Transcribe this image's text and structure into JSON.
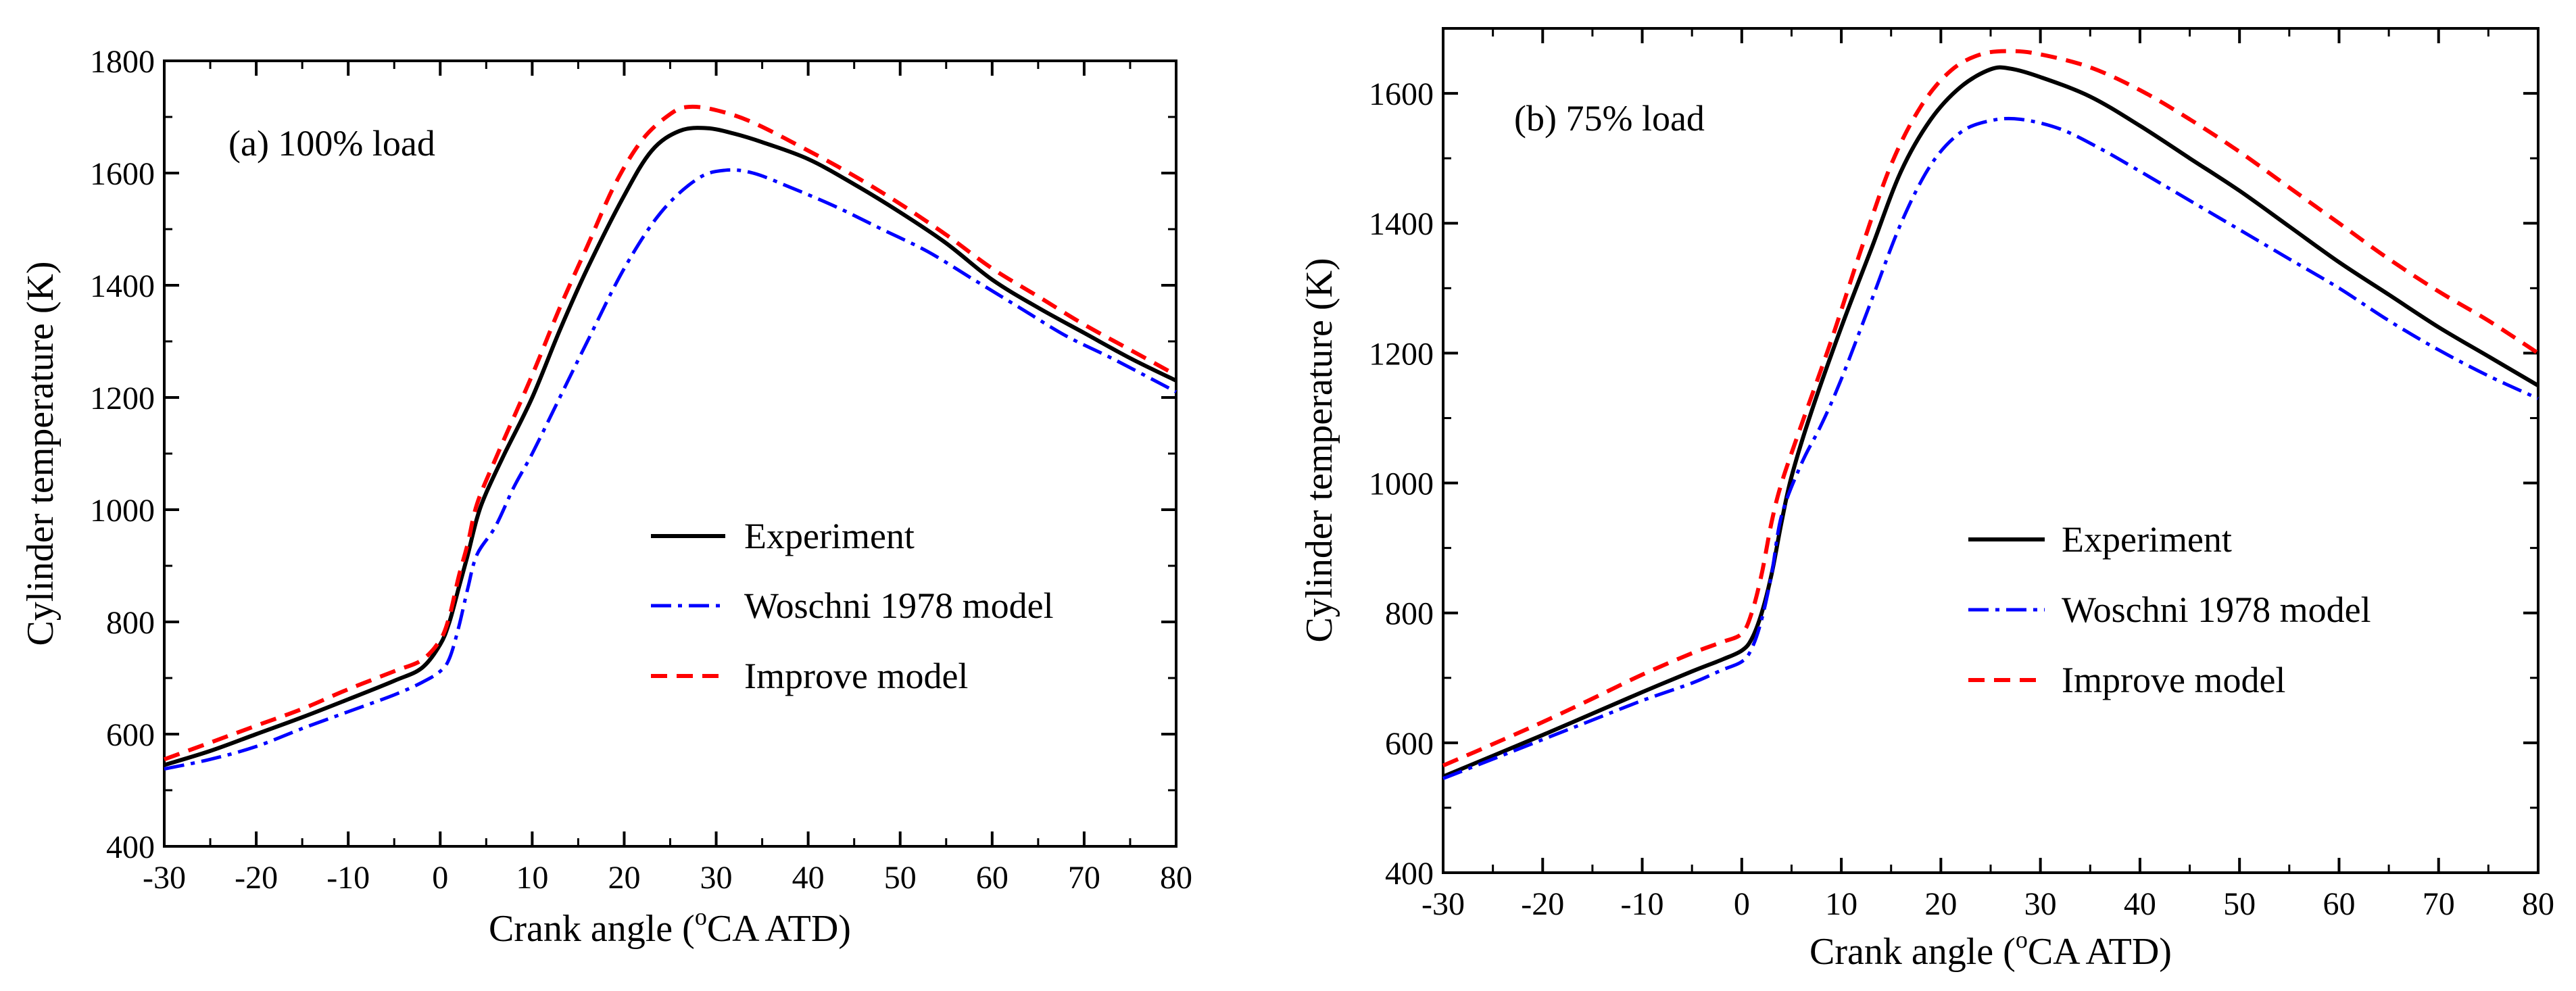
{
  "chart_data": [
    {
      "type": "line",
      "panel_label": "(a) 100% load",
      "xlabel_pre": "Crank angle (",
      "xlabel_sup": "o",
      "xlabel_post": "CA ATD)",
      "ylabel": "Cylinder temperature (K)",
      "xlim": [
        -30,
        80
      ],
      "ylim": [
        400,
        1800
      ],
      "xticks": [
        -30,
        -20,
        -10,
        0,
        10,
        20,
        30,
        40,
        50,
        60,
        70,
        80
      ],
      "yticks": [
        400,
        600,
        800,
        1000,
        1200,
        1400,
        1600,
        1800
      ],
      "legend_position": "center-right",
      "series": [
        {
          "name": "Experiment",
          "color": "#000000",
          "dash": "solid",
          "points": [
            [
              -30,
              545
            ],
            [
              -25,
              570
            ],
            [
              -20,
              600
            ],
            [
              -15,
              630
            ],
            [
              -10,
              662
            ],
            [
              -5,
              695
            ],
            [
              -2,
              718
            ],
            [
              0,
              760
            ],
            [
              1,
              800
            ],
            [
              2,
              860
            ],
            [
              3,
              920
            ],
            [
              4,
              985
            ],
            [
              5,
              1030
            ],
            [
              7,
              1100
            ],
            [
              10,
              1200
            ],
            [
              13,
              1320
            ],
            [
              16,
              1430
            ],
            [
              20,
              1560
            ],
            [
              23,
              1640
            ],
            [
              26,
              1675
            ],
            [
              29,
              1680
            ],
            [
              32,
              1670
            ],
            [
              35,
              1655
            ],
            [
              40,
              1625
            ],
            [
              45,
              1580
            ],
            [
              50,
              1530
            ],
            [
              55,
              1475
            ],
            [
              60,
              1410
            ],
            [
              65,
              1360
            ],
            [
              70,
              1315
            ],
            [
              75,
              1270
            ],
            [
              80,
              1230
            ]
          ]
        },
        {
          "name": "Woschni 1978 model",
          "color": "#0000ff",
          "dash": "dashdot",
          "points": [
            [
              -30,
              538
            ],
            [
              -25,
              555
            ],
            [
              -20,
              578
            ],
            [
              -15,
              610
            ],
            [
              -10,
              640
            ],
            [
              -5,
              670
            ],
            [
              -2,
              692
            ],
            [
              0,
              712
            ],
            [
              1,
              735
            ],
            [
              2,
              790
            ],
            [
              3,
              860
            ],
            [
              4,
              920
            ],
            [
              6,
              970
            ],
            [
              8,
              1040
            ],
            [
              10,
              1100
            ],
            [
              13,
              1200
            ],
            [
              16,
              1300
            ],
            [
              20,
              1430
            ],
            [
              24,
              1530
            ],
            [
              28,
              1590
            ],
            [
              31,
              1605
            ],
            [
              34,
              1600
            ],
            [
              38,
              1575
            ],
            [
              43,
              1540
            ],
            [
              48,
              1500
            ],
            [
              53,
              1460
            ],
            [
              58,
              1410
            ],
            [
              63,
              1360
            ],
            [
              68,
              1310
            ],
            [
              73,
              1270
            ],
            [
              80,
              1210
            ]
          ]
        },
        {
          "name": "Improve model",
          "color": "#ff0000",
          "dash": "dashed",
          "points": [
            [
              -30,
              555
            ],
            [
              -25,
              585
            ],
            [
              -20,
              615
            ],
            [
              -15,
              645
            ],
            [
              -10,
              680
            ],
            [
              -5,
              712
            ],
            [
              -2,
              732
            ],
            [
              0,
              768
            ],
            [
              1,
              810
            ],
            [
              2,
              880
            ],
            [
              3,
              940
            ],
            [
              4,
              1010
            ],
            [
              6,
              1090
            ],
            [
              10,
              1240
            ],
            [
              13,
              1360
            ],
            [
              16,
              1470
            ],
            [
              19,
              1580
            ],
            [
              22,
              1660
            ],
            [
              25,
              1705
            ],
            [
              27,
              1718
            ],
            [
              30,
              1712
            ],
            [
              34,
              1690
            ],
            [
              40,
              1640
            ],
            [
              45,
              1595
            ],
            [
              50,
              1545
            ],
            [
              55,
              1490
            ],
            [
              60,
              1430
            ],
            [
              65,
              1380
            ],
            [
              70,
              1330
            ],
            [
              75,
              1285
            ],
            [
              80,
              1240
            ]
          ]
        }
      ]
    },
    {
      "type": "line",
      "panel_label": "(b) 75% load",
      "xlabel_pre": "Crank angle (",
      "xlabel_sup": "o",
      "xlabel_post": "CA ATD)",
      "ylabel": "Cylinder temperature (K)",
      "xlim": [
        -30,
        80
      ],
      "ylim": [
        400,
        1700
      ],
      "xticks": [
        -30,
        -20,
        -10,
        0,
        10,
        20,
        30,
        40,
        50,
        60,
        70,
        80
      ],
      "yticks": [
        400,
        600,
        800,
        1000,
        1200,
        1400,
        1600
      ],
      "legend_position": "center-right",
      "series": [
        {
          "name": "Experiment",
          "color": "#000000",
          "dash": "solid",
          "points": [
            [
              -30,
              548
            ],
            [
              -25,
              580
            ],
            [
              -20,
              612
            ],
            [
              -15,
              645
            ],
            [
              -10,
              678
            ],
            [
              -5,
              710
            ],
            [
              -2,
              728
            ],
            [
              0,
              742
            ],
            [
              1,
              760
            ],
            [
              2,
              800
            ],
            [
              3,
              860
            ],
            [
              4,
              940
            ],
            [
              5,
              1010
            ],
            [
              7,
              1110
            ],
            [
              10,
              1240
            ],
            [
              13,
              1360
            ],
            [
              16,
              1480
            ],
            [
              19,
              1560
            ],
            [
              22,
              1610
            ],
            [
              25,
              1637
            ],
            [
              27,
              1638
            ],
            [
              30,
              1625
            ],
            [
              35,
              1595
            ],
            [
              40,
              1550
            ],
            [
              45,
              1500
            ],
            [
              50,
              1450
            ],
            [
              55,
              1395
            ],
            [
              60,
              1340
            ],
            [
              65,
              1290
            ],
            [
              70,
              1240
            ],
            [
              75,
              1195
            ],
            [
              80,
              1150
            ]
          ]
        },
        {
          "name": "Woschni 1978 model",
          "color": "#0000ff",
          "dash": "dashdot",
          "points": [
            [
              -30,
              545
            ],
            [
              -25,
              575
            ],
            [
              -20,
              605
            ],
            [
              -15,
              635
            ],
            [
              -10,
              665
            ],
            [
              -5,
              692
            ],
            [
              -2,
              712
            ],
            [
              0,
              725
            ],
            [
              1,
              745
            ],
            [
              2,
              790
            ],
            [
              3,
              860
            ],
            [
              4,
              950
            ],
            [
              6,
              1030
            ],
            [
              8,
              1090
            ],
            [
              10,
              1160
            ],
            [
              13,
              1280
            ],
            [
              16,
              1400
            ],
            [
              19,
              1490
            ],
            [
              22,
              1540
            ],
            [
              25,
              1558
            ],
            [
              28,
              1560
            ],
            [
              32,
              1545
            ],
            [
              36,
              1515
            ],
            [
              40,
              1480
            ],
            [
              45,
              1435
            ],
            [
              50,
              1390
            ],
            [
              55,
              1345
            ],
            [
              60,
              1300
            ],
            [
              65,
              1250
            ],
            [
              70,
              1205
            ],
            [
              75,
              1165
            ],
            [
              80,
              1130
            ]
          ]
        },
        {
          "name": "Improve model",
          "color": "#ff0000",
          "dash": "dashed",
          "points": [
            [
              -30,
              565
            ],
            [
              -25,
              598
            ],
            [
              -20,
              632
            ],
            [
              -15,
              668
            ],
            [
              -10,
              705
            ],
            [
              -5,
              738
            ],
            [
              -2,
              755
            ],
            [
              0,
              768
            ],
            [
              1,
              800
            ],
            [
              2,
              860
            ],
            [
              3,
              940
            ],
            [
              4,
              1000
            ],
            [
              6,
              1090
            ],
            [
              9,
              1220
            ],
            [
              12,
              1360
            ],
            [
              15,
              1490
            ],
            [
              18,
              1580
            ],
            [
              21,
              1635
            ],
            [
              24,
              1660
            ],
            [
              27,
              1665
            ],
            [
              30,
              1660
            ],
            [
              35,
              1640
            ],
            [
              40,
              1605
            ],
            [
              45,
              1560
            ],
            [
              50,
              1510
            ],
            [
              55,
              1455
            ],
            [
              60,
              1400
            ],
            [
              65,
              1345
            ],
            [
              70,
              1295
            ],
            [
              75,
              1250
            ],
            [
              80,
              1200
            ]
          ]
        }
      ]
    }
  ]
}
